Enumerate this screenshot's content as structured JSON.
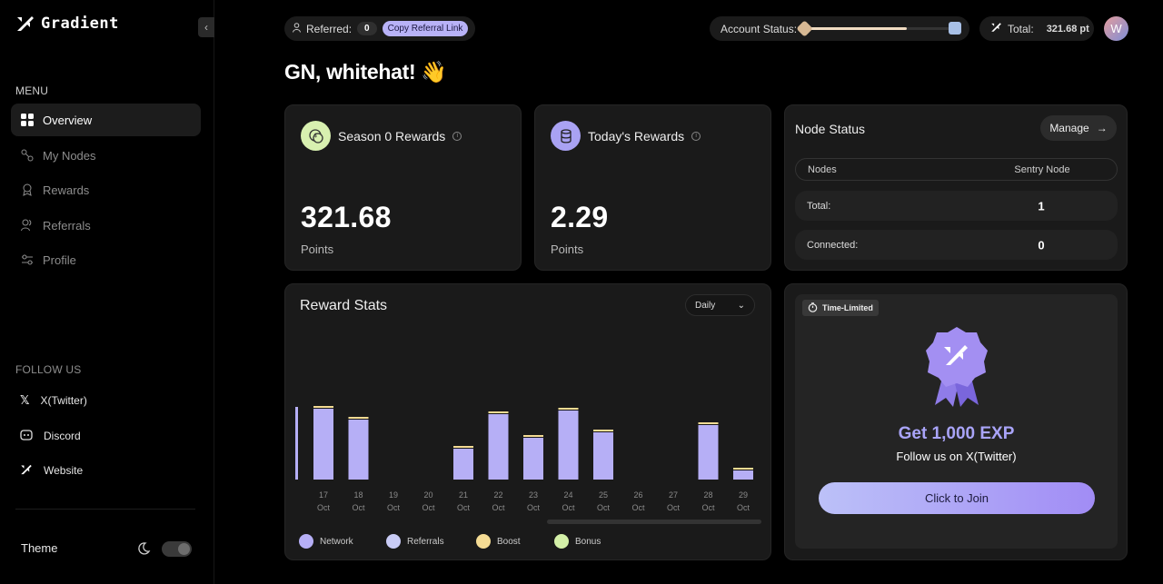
{
  "brand": {
    "name": "Gradient"
  },
  "sidebar": {
    "menu_label": "MENU",
    "items": [
      {
        "label": "Overview",
        "icon": "grid-icon",
        "active": true
      },
      {
        "label": "My Nodes",
        "icon": "nodes-icon"
      },
      {
        "label": "Rewards",
        "icon": "award-icon"
      },
      {
        "label": "Referrals",
        "icon": "users-icon"
      },
      {
        "label": "Profile",
        "icon": "sliders-icon"
      }
    ],
    "follow_label": "FOLLOW US",
    "follow": [
      {
        "label": "X(Twitter)",
        "icon": "x-icon"
      },
      {
        "label": "Discord",
        "icon": "discord-icon"
      },
      {
        "label": "Website",
        "icon": "gradient-logo-icon"
      }
    ],
    "theme_label": "Theme"
  },
  "topbar": {
    "referred_label": "Referred:",
    "referred_count": "0",
    "copy_label": "Copy Referral Link",
    "account_status_label": "Account Status:",
    "account_status_progress": 0.7,
    "total_label": "Total:",
    "total_value": "321.68 pt",
    "avatar_initial": "W"
  },
  "greeting": "GN, whitehat! 👋",
  "season_card": {
    "title": "Season 0 Rewards",
    "value": "321.68",
    "unit": "Points"
  },
  "today_card": {
    "title": "Today's Rewards",
    "value": "2.29",
    "unit": "Points"
  },
  "node_status": {
    "title": "Node Status",
    "manage_label": "Manage",
    "header": {
      "left": "Nodes",
      "right": "Sentry Node"
    },
    "rows": [
      {
        "label": "Total:",
        "value": "1"
      },
      {
        "label": "Connected:",
        "value": "0"
      }
    ]
  },
  "reward_stats": {
    "title": "Reward Stats",
    "period": "Daily",
    "legend": [
      {
        "label": "Network",
        "color": "#b6aff6"
      },
      {
        "label": "Referrals",
        "color": "#c9ccf6"
      },
      {
        "label": "Boost",
        "color": "#f5dc94"
      },
      {
        "label": "Bonus",
        "color": "#d4f0a8"
      }
    ]
  },
  "chart_data": {
    "type": "bar",
    "categories": [
      "17 Oct",
      "18 Oct",
      "19 Oct",
      "20 Oct",
      "21 Oct",
      "22 Oct",
      "23 Oct",
      "24 Oct",
      "25 Oct",
      "26 Oct",
      "27 Oct",
      "28 Oct",
      "29 Oct"
    ],
    "series": [
      {
        "name": "Network",
        "values": [
          78,
          66,
          0,
          0,
          34,
          72,
          46,
          76,
          52,
          0,
          0,
          60,
          10
        ]
      },
      {
        "name": "Boost",
        "values": [
          1,
          1,
          0,
          0,
          1,
          1,
          1,
          1,
          1,
          0,
          0,
          1,
          1
        ]
      }
    ],
    "ylim": [
      0,
      100
    ],
    "xlabel": "",
    "ylabel": "",
    "grid": false
  },
  "promo": {
    "tag": "Time-Limited",
    "title": "Get 1,000 EXP",
    "subtitle": "Follow us on X(Twitter)",
    "button": "Click to Join"
  }
}
